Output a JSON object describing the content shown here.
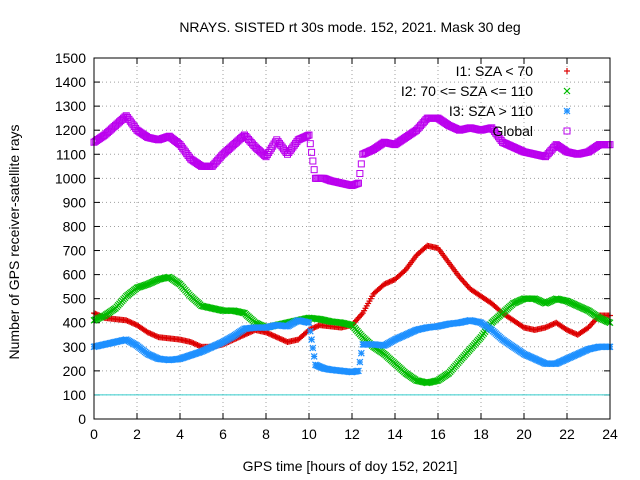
{
  "chart_data": {
    "type": "scatter",
    "title": "NRAYS. SISTED rt 30s mode. 152, 2021. Mask 30 deg",
    "xlabel": "GPS time [hours of doy 152, 2021]",
    "ylabel": "Number of GPS receiver-satellite rays",
    "xlim": [
      0,
      24
    ],
    "ylim": [
      0,
      1500
    ],
    "x_ticks": [
      0,
      2,
      4,
      6,
      8,
      10,
      12,
      14,
      16,
      18,
      20,
      22,
      24
    ],
    "y_ticks": [
      0,
      100,
      200,
      300,
      400,
      500,
      600,
      700,
      800,
      900,
      1000,
      1100,
      1200,
      1300,
      1400,
      1500
    ],
    "grid": true,
    "legend_position": "top-right",
    "reference_line": {
      "y": 100,
      "color": "#33cccc"
    },
    "series": [
      {
        "name": "I1: SZA < 70",
        "marker": "+",
        "color": "#dd0000",
        "points": [
          [
            0,
            440
          ],
          [
            0.5,
            420
          ],
          [
            1,
            415
          ],
          [
            1.5,
            410
          ],
          [
            2,
            390
          ],
          [
            2.5,
            360
          ],
          [
            3,
            340
          ],
          [
            3.5,
            335
          ],
          [
            4,
            330
          ],
          [
            4.5,
            320
          ],
          [
            5,
            300
          ],
          [
            5.5,
            300
          ],
          [
            6,
            310
          ],
          [
            6.5,
            330
          ],
          [
            7,
            350
          ],
          [
            7.5,
            370
          ],
          [
            8,
            360
          ],
          [
            8.5,
            340
          ],
          [
            9,
            320
          ],
          [
            9.5,
            330
          ],
          [
            10,
            370
          ],
          [
            10.5,
            390
          ],
          [
            11,
            385
          ],
          [
            11.5,
            380
          ],
          [
            12,
            390
          ],
          [
            12.5,
            440
          ],
          [
            13,
            520
          ],
          [
            13.5,
            560
          ],
          [
            14,
            580
          ],
          [
            14.5,
            620
          ],
          [
            15,
            680
          ],
          [
            15.5,
            720
          ],
          [
            16,
            710
          ],
          [
            16.5,
            650
          ],
          [
            17,
            590
          ],
          [
            17.5,
            540
          ],
          [
            18,
            510
          ],
          [
            18.5,
            480
          ],
          [
            19,
            440
          ],
          [
            19.5,
            410
          ],
          [
            20,
            380
          ],
          [
            20.5,
            370
          ],
          [
            21,
            380
          ],
          [
            21.5,
            400
          ],
          [
            22,
            370
          ],
          [
            22.5,
            350
          ],
          [
            23,
            380
          ],
          [
            23.5,
            430
          ],
          [
            24,
            430
          ]
        ]
      },
      {
        "name": "I2: 70 <= SZA <= 110",
        "marker": "x",
        "color": "#00bb00",
        "points": [
          [
            0,
            410
          ],
          [
            0.5,
            430
          ],
          [
            1,
            460
          ],
          [
            1.5,
            510
          ],
          [
            2,
            545
          ],
          [
            2.5,
            560
          ],
          [
            3,
            580
          ],
          [
            3.5,
            590
          ],
          [
            4,
            560
          ],
          [
            4.5,
            510
          ],
          [
            5,
            470
          ],
          [
            5.5,
            460
          ],
          [
            6,
            450
          ],
          [
            6.5,
            450
          ],
          [
            7,
            440
          ],
          [
            7.5,
            400
          ],
          [
            8,
            380
          ],
          [
            8.5,
            390
          ],
          [
            9,
            400
          ],
          [
            9.5,
            410
          ],
          [
            10,
            420
          ],
          [
            10.5,
            415
          ],
          [
            11,
            405
          ],
          [
            11.5,
            400
          ],
          [
            12,
            390
          ],
          [
            12.5,
            340
          ],
          [
            13,
            300
          ],
          [
            13.5,
            270
          ],
          [
            14,
            230
          ],
          [
            14.5,
            190
          ],
          [
            15,
            160
          ],
          [
            15.5,
            150
          ],
          [
            16,
            160
          ],
          [
            16.5,
            190
          ],
          [
            17,
            240
          ],
          [
            17.5,
            290
          ],
          [
            18,
            340
          ],
          [
            18.5,
            400
          ],
          [
            19,
            440
          ],
          [
            19.5,
            480
          ],
          [
            20,
            500
          ],
          [
            20.5,
            500
          ],
          [
            21,
            480
          ],
          [
            21.5,
            500
          ],
          [
            22,
            490
          ],
          [
            22.5,
            470
          ],
          [
            23,
            450
          ],
          [
            23.5,
            420
          ],
          [
            24,
            400
          ]
        ]
      },
      {
        "name": "I3: SZA > 110",
        "marker": "*",
        "color": "#1e90ff",
        "points": [
          [
            0,
            300
          ],
          [
            0.5,
            310
          ],
          [
            1,
            320
          ],
          [
            1.5,
            330
          ],
          [
            2,
            305
          ],
          [
            2.5,
            270
          ],
          [
            3,
            250
          ],
          [
            3.5,
            245
          ],
          [
            4,
            250
          ],
          [
            4.5,
            265
          ],
          [
            5,
            280
          ],
          [
            5.5,
            300
          ],
          [
            6,
            320
          ],
          [
            6.5,
            345
          ],
          [
            7,
            375
          ],
          [
            7.5,
            380
          ],
          [
            8,
            380
          ],
          [
            8.5,
            390
          ],
          [
            9,
            385
          ],
          [
            9.5,
            410
          ],
          [
            10,
            400
          ],
          [
            10.3,
            225
          ],
          [
            10.7,
            210
          ],
          [
            11,
            205
          ],
          [
            11.5,
            200
          ],
          [
            12,
            195
          ],
          [
            12.3,
            200
          ],
          [
            12.5,
            310
          ],
          [
            13,
            310
          ],
          [
            13.5,
            305
          ],
          [
            14,
            330
          ],
          [
            14.5,
            350
          ],
          [
            15,
            370
          ],
          [
            15.5,
            380
          ],
          [
            16,
            385
          ],
          [
            16.5,
            395
          ],
          [
            17,
            400
          ],
          [
            17.5,
            410
          ],
          [
            18,
            400
          ],
          [
            18.5,
            370
          ],
          [
            19,
            330
          ],
          [
            19.5,
            300
          ],
          [
            20,
            270
          ],
          [
            20.5,
            250
          ],
          [
            21,
            230
          ],
          [
            21.5,
            230
          ],
          [
            22,
            250
          ],
          [
            22.5,
            270
          ],
          [
            23,
            290
          ],
          [
            23.5,
            300
          ],
          [
            24,
            300
          ]
        ]
      },
      {
        "name": "Global",
        "marker": "square",
        "color": "#bb00ee",
        "points": [
          [
            0,
            1150
          ],
          [
            0.5,
            1180
          ],
          [
            1,
            1220
          ],
          [
            1.5,
            1260
          ],
          [
            2,
            1200
          ],
          [
            2.5,
            1170
          ],
          [
            3,
            1160
          ],
          [
            3.5,
            1175
          ],
          [
            4,
            1140
          ],
          [
            4.5,
            1080
          ],
          [
            5,
            1050
          ],
          [
            5.5,
            1050
          ],
          [
            6,
            1100
          ],
          [
            6.5,
            1140
          ],
          [
            7,
            1180
          ],
          [
            7.5,
            1130
          ],
          [
            8,
            1090
          ],
          [
            8.5,
            1160
          ],
          [
            9,
            1100
          ],
          [
            9.5,
            1160
          ],
          [
            10,
            1180
          ],
          [
            10.3,
            1000
          ],
          [
            10.7,
            1000
          ],
          [
            11,
            990
          ],
          [
            11.5,
            980
          ],
          [
            12,
            970
          ],
          [
            12.3,
            980
          ],
          [
            12.5,
            1100
          ],
          [
            13,
            1120
          ],
          [
            13.5,
            1150
          ],
          [
            14,
            1140
          ],
          [
            14.5,
            1170
          ],
          [
            15,
            1200
          ],
          [
            15.5,
            1250
          ],
          [
            16,
            1250
          ],
          [
            16.5,
            1220
          ],
          [
            17,
            1200
          ],
          [
            17.5,
            1210
          ],
          [
            18,
            1200
          ],
          [
            18.5,
            1210
          ],
          [
            19,
            1150
          ],
          [
            19.5,
            1130
          ],
          [
            20,
            1110
          ],
          [
            20.5,
            1100
          ],
          [
            21,
            1090
          ],
          [
            21.5,
            1140
          ],
          [
            22,
            1110
          ],
          [
            22.5,
            1100
          ],
          [
            23,
            1110
          ],
          [
            23.5,
            1140
          ],
          [
            24,
            1140
          ]
        ]
      }
    ]
  }
}
